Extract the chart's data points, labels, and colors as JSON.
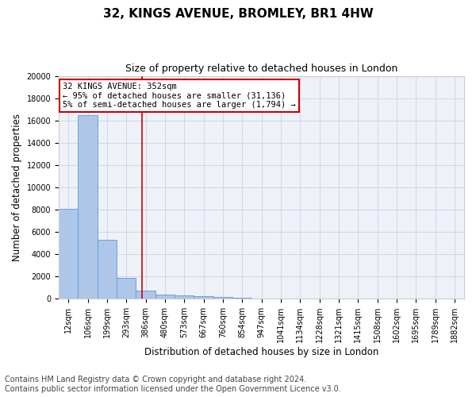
{
  "title": "32, KINGS AVENUE, BROMLEY, BR1 4HW",
  "subtitle": "Size of property relative to detached houses in London",
  "xlabel": "Distribution of detached houses by size in London",
  "ylabel": "Number of detached properties",
  "categories": [
    "12sqm",
    "106sqm",
    "199sqm",
    "293sqm",
    "386sqm",
    "480sqm",
    "573sqm",
    "667sqm",
    "760sqm",
    "854sqm",
    "947sqm",
    "1041sqm",
    "1134sqm",
    "1228sqm",
    "1321sqm",
    "1415sqm",
    "1508sqm",
    "1602sqm",
    "1695sqm",
    "1789sqm",
    "1882sqm"
  ],
  "values": [
    8100,
    16500,
    5300,
    1900,
    700,
    380,
    280,
    200,
    150,
    120,
    0,
    0,
    0,
    0,
    0,
    0,
    0,
    0,
    0,
    0,
    0
  ],
  "bar_color": "#aec6e8",
  "bar_edge_color": "#5b9bd5",
  "vline_x": 3.8,
  "vline_color": "#cc0000",
  "annotation_line1": "32 KINGS AVENUE: 352sqm",
  "annotation_line2": "← 95% of detached houses are smaller (31,136)",
  "annotation_line3": "5% of semi-detached houses are larger (1,794) →",
  "annotation_box_color": "#cc0000",
  "annotation_text_color": "#000000",
  "ylim": [
    0,
    20000
  ],
  "yticks": [
    0,
    2000,
    4000,
    6000,
    8000,
    10000,
    12000,
    14000,
    16000,
    18000,
    20000
  ],
  "grid_color": "#d0d8e8",
  "background_color": "#eef2f8",
  "footer_line1": "Contains HM Land Registry data © Crown copyright and database right 2024.",
  "footer_line2": "Contains public sector information licensed under the Open Government Licence v3.0.",
  "title_fontsize": 11,
  "subtitle_fontsize": 9,
  "xlabel_fontsize": 8.5,
  "ylabel_fontsize": 8.5,
  "tick_fontsize": 7,
  "footer_fontsize": 7,
  "annotation_fontsize": 7.5
}
